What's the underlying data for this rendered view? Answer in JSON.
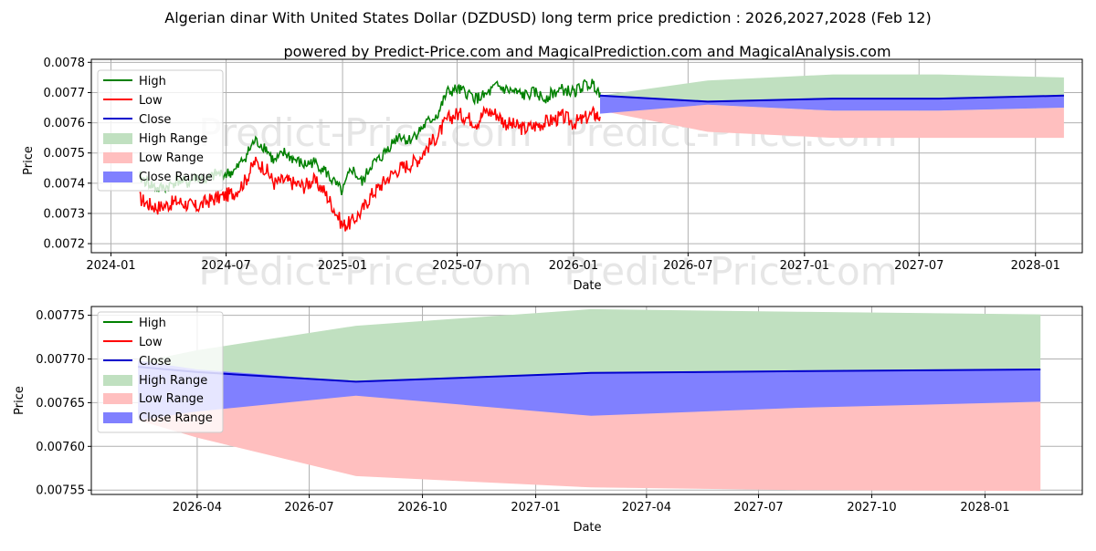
{
  "title": "Algerian dinar With United States Dollar (DZDUSD) long term price prediction : 2026,2027,2028 (Feb 12)",
  "subtitle": "powered by Predict-Price.com and MagicalPrediction.com and MagicalAnalysis.com",
  "watermark": "Predict-Price.com",
  "colors": {
    "high": "#008000",
    "low": "#ff0000",
    "close": "#0000cc",
    "high_range": "#c0e0c0",
    "low_range": "#ffbfbf",
    "close_range": "#8080ff",
    "grid": "#b0b0b0",
    "watermark": "#e6e6e6"
  },
  "legend": {
    "high": "High",
    "low": "Low",
    "close": "Close",
    "high_range": "High Range",
    "low_range": "Low Range",
    "close_range": "Close Range"
  },
  "chart_data": [
    {
      "type": "line",
      "title": "Algerian dinar With United States Dollar (DZDUSD) long term price prediction : 2026,2027,2028 (Feb 12)",
      "xlabel": "Date",
      "ylabel": "Price",
      "xlim": [
        "2023-12-01",
        "2028-03-15"
      ],
      "ylim": [
        0.00717,
        0.00781
      ],
      "xticks": [
        "2024-01",
        "2024-07",
        "2025-01",
        "2025-07",
        "2026-01",
        "2026-07",
        "2027-01",
        "2027-07",
        "2028-01"
      ],
      "yticks": [
        "0.0072",
        "0.0073",
        "0.0074",
        "0.0075",
        "0.0076",
        "0.0077",
        "0.0078"
      ],
      "grid": true,
      "legend_position": "top-left",
      "history": {
        "x": [
          "2024-02-15",
          "2024-03-01",
          "2024-03-15",
          "2024-04-01",
          "2024-04-15",
          "2024-05-01",
          "2024-05-15",
          "2024-06-01",
          "2024-06-15",
          "2024-07-01",
          "2024-07-15",
          "2024-08-01",
          "2024-08-15",
          "2024-09-01",
          "2024-09-15",
          "2024-10-01",
          "2024-10-15",
          "2024-11-01",
          "2024-11-15",
          "2024-12-01",
          "2024-12-15",
          "2025-01-01",
          "2025-01-15",
          "2025-02-01",
          "2025-02-15",
          "2025-03-01",
          "2025-03-15",
          "2025-04-01",
          "2025-04-15",
          "2025-05-01",
          "2025-05-15",
          "2025-06-01",
          "2025-06-15",
          "2025-07-01",
          "2025-07-15",
          "2025-08-01",
          "2025-08-15",
          "2025-09-01",
          "2025-09-15",
          "2025-10-01",
          "2025-10-15",
          "2025-11-01",
          "2025-11-15",
          "2025-12-01",
          "2025-12-15",
          "2026-01-01",
          "2026-01-15",
          "2026-02-01",
          "2026-02-12"
        ],
        "high": [
          0.00742,
          0.0074,
          0.00738,
          0.00739,
          0.00741,
          0.0074,
          0.00742,
          0.00741,
          0.00743,
          0.00743,
          0.00744,
          0.00749,
          0.00754,
          0.00752,
          0.00747,
          0.0075,
          0.00748,
          0.00746,
          0.00747,
          0.00745,
          0.00741,
          0.00737,
          0.00745,
          0.0074,
          0.00746,
          0.00748,
          0.00752,
          0.00756,
          0.00754,
          0.00757,
          0.0076,
          0.00763,
          0.0077,
          0.00771,
          0.0077,
          0.00768,
          0.00769,
          0.00772,
          0.00771,
          0.0077,
          0.00769,
          0.0077,
          0.00768,
          0.0077,
          0.00771,
          0.0077,
          0.00772,
          0.00773,
          0.0077
        ],
        "low": [
          0.00735,
          0.00733,
          0.00732,
          0.00733,
          0.00734,
          0.00733,
          0.00732,
          0.00734,
          0.00735,
          0.00736,
          0.00737,
          0.00741,
          0.00747,
          0.00745,
          0.0074,
          0.00741,
          0.0074,
          0.00739,
          0.00741,
          0.00738,
          0.00733,
          0.00726,
          0.00727,
          0.00731,
          0.00736,
          0.00739,
          0.00742,
          0.00745,
          0.00746,
          0.00748,
          0.00752,
          0.00756,
          0.00761,
          0.00763,
          0.00762,
          0.0076,
          0.00764,
          0.00763,
          0.0076,
          0.00759,
          0.00758,
          0.00759,
          0.0076,
          0.00761,
          0.00762,
          0.0076,
          0.00761,
          0.00763,
          0.00762
        ]
      },
      "forecast": {
        "x": [
          "2026-02-12",
          "2026-08-01",
          "2027-02-15",
          "2027-08-01",
          "2028-02-15"
        ],
        "close": [
          0.00769,
          0.00767,
          0.00768,
          0.00768,
          0.00769
        ],
        "high_range": {
          "upper": [
            0.00769,
            0.00774,
            0.00776,
            0.00776,
            0.00775
          ],
          "lower": [
            0.00764,
            0.00766,
            0.00764,
            0.00764,
            0.00765
          ]
        },
        "low_range": {
          "upper": [
            0.00769,
            0.00766,
            0.00764,
            0.00764,
            0.00765
          ],
          "lower": [
            0.00764,
            0.00757,
            0.00755,
            0.00755,
            0.00755
          ]
        },
        "close_range": {
          "upper": [
            0.00769,
            0.00767,
            0.00768,
            0.00768,
            0.00769
          ],
          "lower": [
            0.00763,
            0.00766,
            0.00764,
            0.00764,
            0.00765
          ]
        }
      }
    },
    {
      "type": "line",
      "title": "",
      "xlabel": "Date",
      "ylabel": "Price",
      "xlim": [
        "2026-01-05",
        "2028-03-20"
      ],
      "ylim": [
        0.007545,
        0.00776
      ],
      "xticks": [
        "2026-04",
        "2026-07",
        "2026-10",
        "2027-01",
        "2027-04",
        "2027-07",
        "2027-10",
        "2028-01"
      ],
      "yticks": [
        "0.00755",
        "0.00760",
        "0.00765",
        "0.00770",
        "0.00775"
      ],
      "grid": true,
      "legend_position": "top-left",
      "forecast": {
        "x": [
          "2026-02-12",
          "2026-04-01",
          "2026-08-08",
          "2027-02-15",
          "2027-08-01",
          "2028-02-15"
        ],
        "close": [
          0.007691,
          0.007685,
          0.007674,
          0.007684,
          0.007686,
          0.007688
        ],
        "high_range": {
          "upper": [
            0.007696,
            0.00771,
            0.007738,
            0.007757,
            0.007754,
            0.007751
          ],
          "lower": [
            0.00765,
            0.00765,
            0.00766,
            0.00764,
            0.007645,
            0.007651
          ]
        },
        "low_range": {
          "upper": [
            0.00765,
            0.00765,
            0.00766,
            0.00764,
            0.007645,
            0.007651
          ],
          "lower": [
            0.00763,
            0.00761,
            0.007566,
            0.007553,
            0.00755,
            0.007549
          ]
        },
        "close_range": {
          "upper": [
            0.007698,
            0.007688,
            0.007674,
            0.007684,
            0.007686,
            0.007688
          ],
          "lower": [
            0.00763,
            0.00764,
            0.007658,
            0.007635,
            0.007644,
            0.007651
          ]
        }
      }
    }
  ]
}
